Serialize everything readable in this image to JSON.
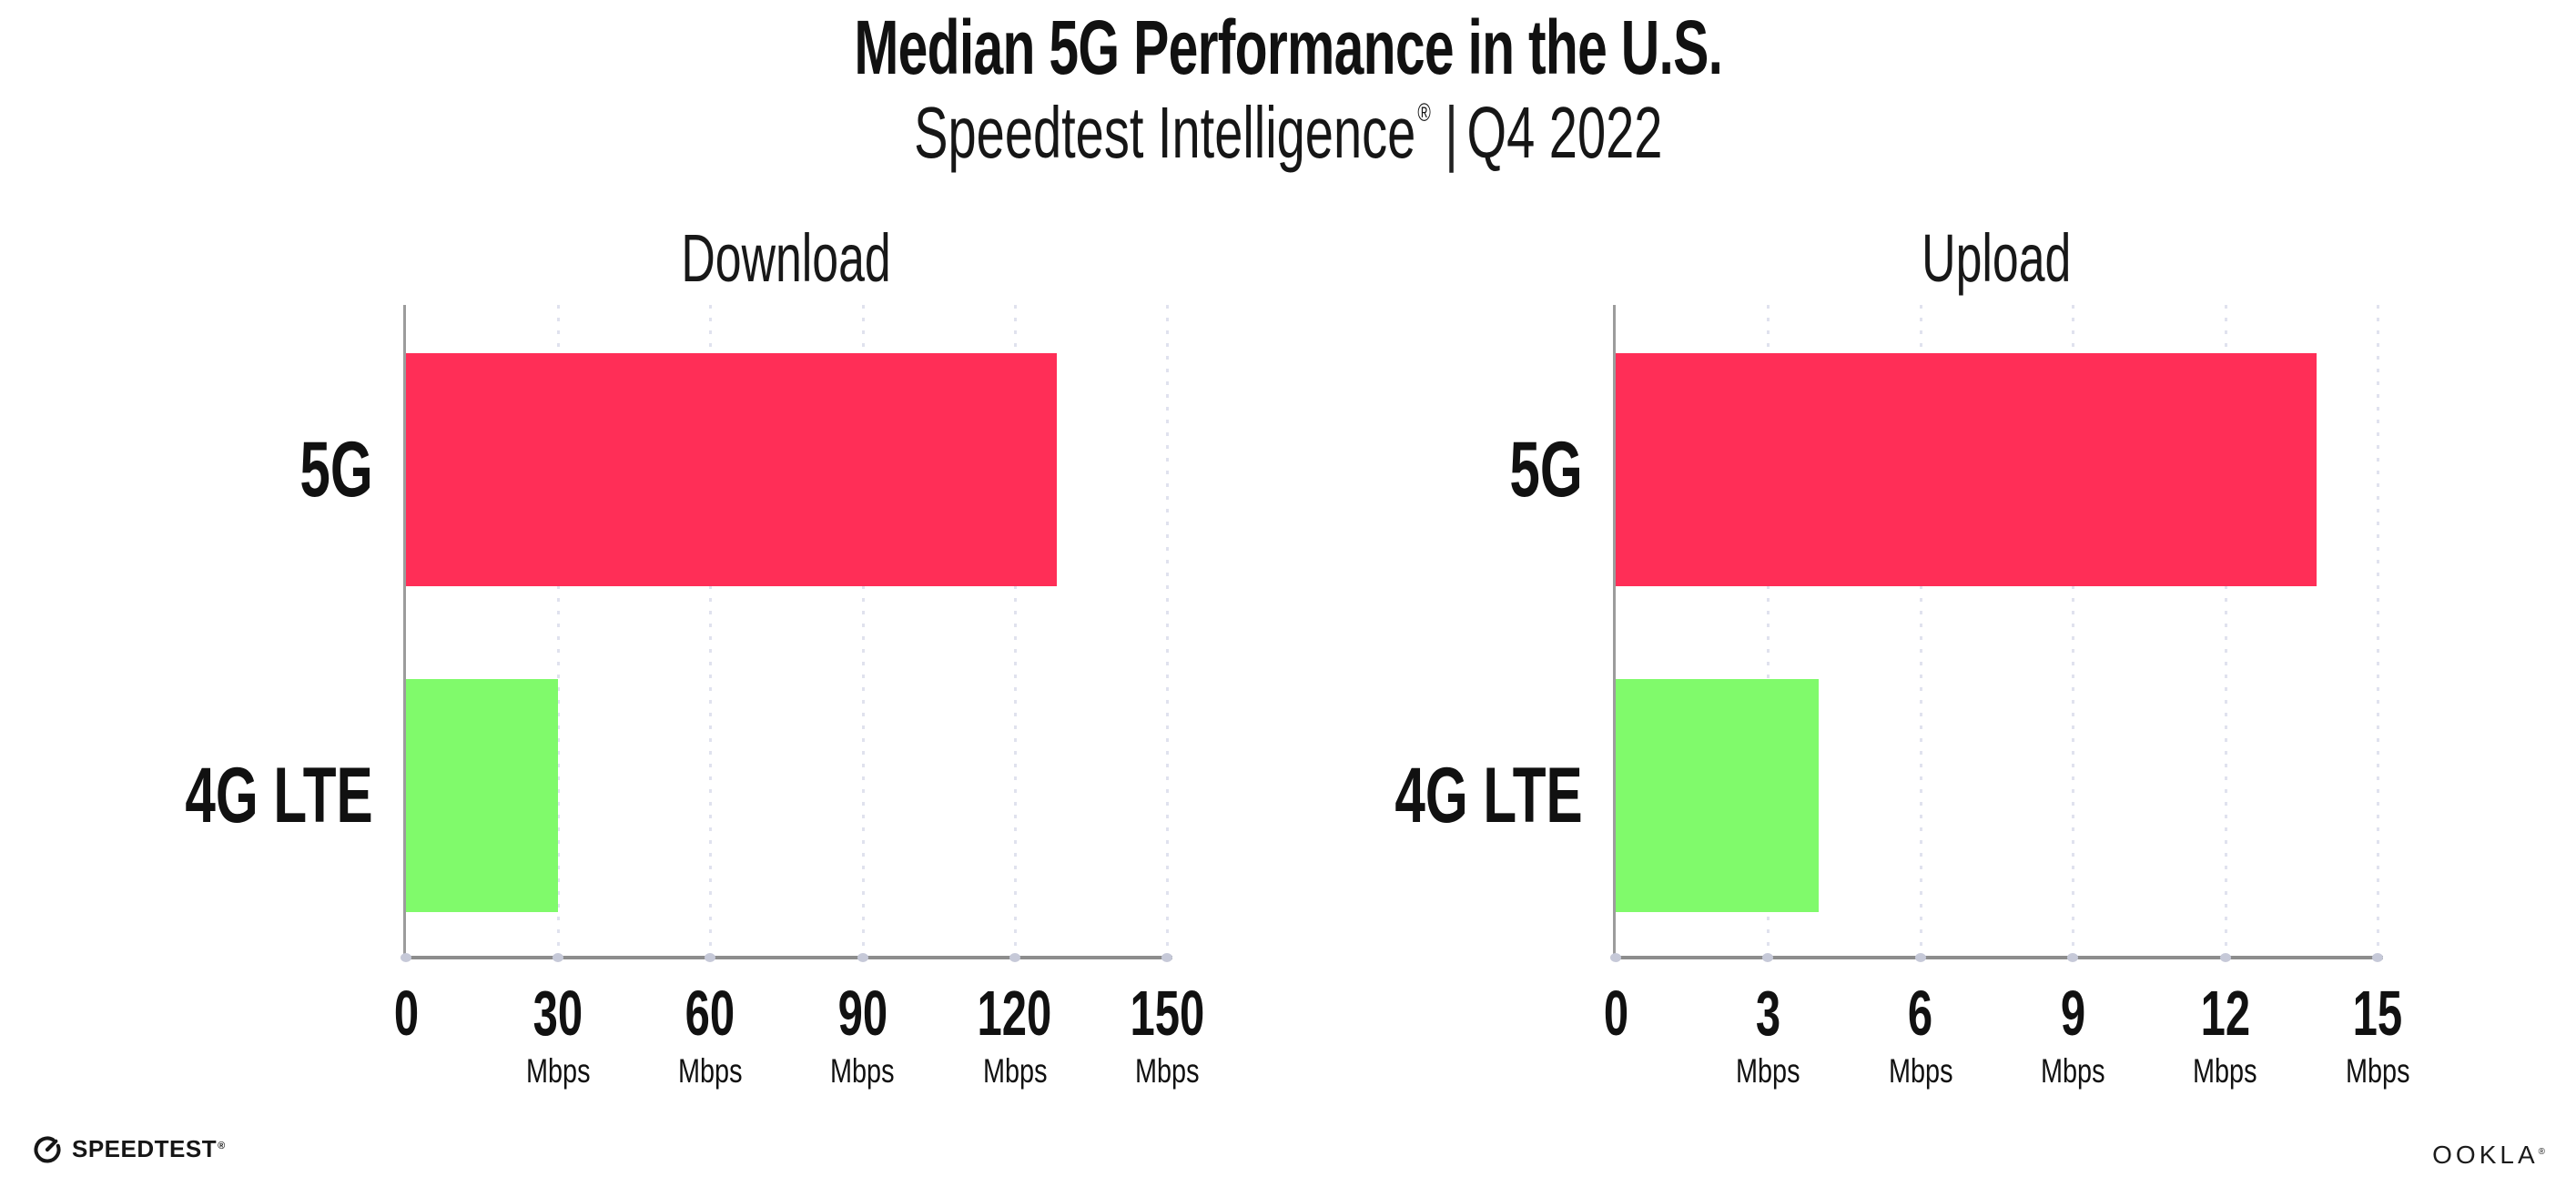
{
  "header": {
    "title": "Median 5G Performance in the U.S.",
    "subtitle_brand": "Speedtest Intelligence",
    "subtitle_reg": "®",
    "subtitle_sep": "|",
    "subtitle_period": "Q4 2022"
  },
  "colors": {
    "bar_5g": "#ff2e57",
    "bar_4g_lte": "#80fa6b",
    "gridline": "#e0e2ee",
    "axis": "#8d8d8d",
    "text": "#111111"
  },
  "chart_data": [
    {
      "type": "bar",
      "orientation": "horizontal",
      "title": "Download",
      "unit": "Mbps",
      "categories": [
        "5G",
        "4G LTE"
      ],
      "values": [
        128.3,
        30
      ],
      "colors": [
        "#ff2e57",
        "#80fa6b"
      ],
      "xlim": [
        0,
        150
      ],
      "xticks": [
        0,
        30,
        60,
        90,
        120,
        150
      ],
      "grid": "dotted-vertical",
      "legend": "none"
    },
    {
      "type": "bar",
      "orientation": "horizontal",
      "title": "Upload",
      "unit": "Mbps",
      "categories": [
        "5G",
        "4G LTE"
      ],
      "values": [
        13.8,
        4
      ],
      "colors": [
        "#ff2e57",
        "#80fa6b"
      ],
      "xlim": [
        0,
        15
      ],
      "xticks": [
        0,
        3,
        6,
        9,
        12,
        15
      ],
      "grid": "dotted-vertical",
      "legend": "none"
    }
  ],
  "footer": {
    "speedtest_label": "SPEEDTEST",
    "speedtest_mark": "®",
    "ookla_label": "OOKLA",
    "ookla_mark": "®"
  }
}
